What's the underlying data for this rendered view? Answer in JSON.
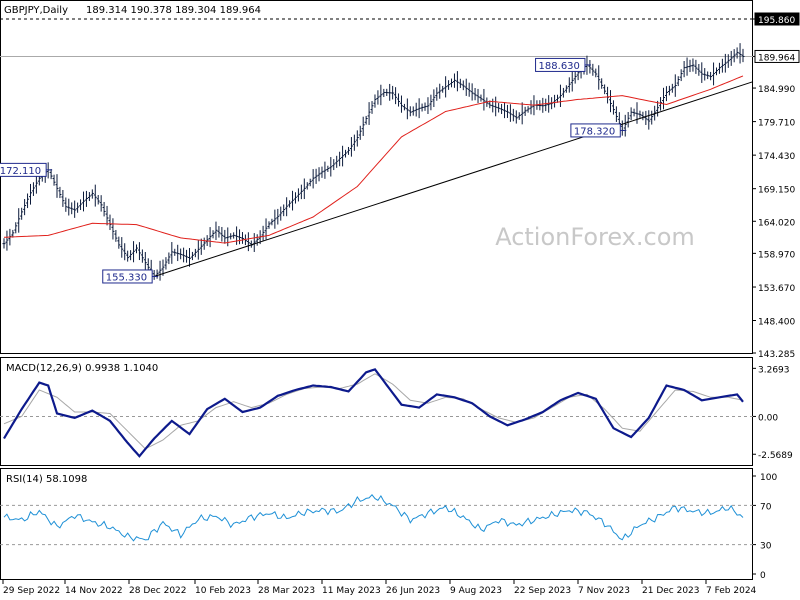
{
  "chart_data": {
    "type": "bar",
    "instrument_label": "GBPJPY,Daily",
    "ohlc_label": "189.314 190.378 189.304 189.964",
    "watermark": "ActionForex.com",
    "x_tick_labels": [
      "29 Sep 2022",
      "14 Nov 2022",
      "28 Dec 2022",
      "10 Feb 2023",
      "28 Mar 2023",
      "11 May 2023",
      "26 Jun 2023",
      "9 Aug 2023",
      "22 Sep 2023",
      "7 Nov 2023",
      "21 Dec 2023",
      "7 Feb 2024"
    ],
    "price_panel": {
      "ylim": [
        143.285,
        195.86
      ],
      "ticks": [
        "195.860",
        "189.964",
        "184.990",
        "179.710",
        "174.430",
        "169.150",
        "164.020",
        "158.970",
        "153.670",
        "148.400",
        "143.285"
      ],
      "resistance_level": 195.86,
      "last_price": 189.964,
      "annotations": [
        "172.110",
        "155.330",
        "188.630",
        "178.320"
      ],
      "trendline": {
        "from": {
          "date": "28 Dec 2022",
          "value": 155.33
        },
        "to": {
          "date": "7 Feb 2024",
          "value": 184.0
        }
      },
      "price_path": [
        [
          0,
          160.5
        ],
        [
          3,
          162.2
        ],
        [
          6,
          165.5
        ],
        [
          9,
          168.5
        ],
        [
          12,
          170.8
        ],
        [
          15,
          172.1
        ],
        [
          18,
          169.2
        ],
        [
          21,
          166.3
        ],
        [
          24,
          165.8
        ],
        [
          27,
          167.2
        ],
        [
          30,
          168.4
        ],
        [
          33,
          166.6
        ],
        [
          36,
          163.5
        ],
        [
          39,
          160.3
        ],
        [
          42,
          158.3
        ],
        [
          45,
          159.8
        ],
        [
          48,
          157.5
        ],
        [
          51,
          155.33
        ],
        [
          54,
          156.8
        ],
        [
          57,
          159.2
        ],
        [
          60,
          158.8
        ],
        [
          63,
          158.2
        ],
        [
          66,
          159.6
        ],
        [
          69,
          161.1
        ],
        [
          72,
          162.6
        ],
        [
          75,
          161.4
        ],
        [
          78,
          161.8
        ],
        [
          81,
          161.3
        ],
        [
          84,
          160.3
        ],
        [
          87,
          161.6
        ],
        [
          90,
          163.6
        ],
        [
          93,
          164.8
        ],
        [
          96,
          166.4
        ],
        [
          99,
          167.8
        ],
        [
          102,
          169.2
        ],
        [
          105,
          170.8
        ],
        [
          108,
          171.8
        ],
        [
          111,
          172.6
        ],
        [
          114,
          173.9
        ],
        [
          117,
          175.2
        ],
        [
          120,
          177.2
        ],
        [
          123,
          180.2
        ],
        [
          126,
          183.2
        ],
        [
          129,
          184.3
        ],
        [
          132,
          184.2
        ],
        [
          135,
          182.2
        ],
        [
          138,
          181.2
        ],
        [
          141,
          181.8
        ],
        [
          144,
          182.2
        ],
        [
          147,
          184.2
        ],
        [
          150,
          185.2
        ],
        [
          153,
          186.2
        ],
        [
          156,
          185.3
        ],
        [
          159,
          184.2
        ],
        [
          162,
          183.3
        ],
        [
          165,
          182.3
        ],
        [
          168,
          181.8
        ],
        [
          171,
          181.2
        ],
        [
          174,
          180.3
        ],
        [
          177,
          181.4
        ],
        [
          180,
          182.3
        ],
        [
          183,
          182.2
        ],
        [
          186,
          182.6
        ],
        [
          189,
          183.8
        ],
        [
          192,
          185.6
        ],
        [
          195,
          187.4
        ],
        [
          198,
          188.63
        ],
        [
          201,
          187.2
        ],
        [
          204,
          184.5
        ],
        [
          207,
          181.6
        ],
        [
          210,
          178.32
        ],
        [
          213,
          181.2
        ],
        [
          216,
          180.8
        ],
        [
          219,
          179.8
        ],
        [
          222,
          181.9
        ],
        [
          225,
          184.3
        ],
        [
          228,
          185.4
        ],
        [
          231,
          188.2
        ],
        [
          234,
          188.6
        ],
        [
          237,
          187.2
        ],
        [
          240,
          186.8
        ],
        [
          243,
          188.2
        ],
        [
          246,
          189.3
        ],
        [
          249,
          190.6
        ],
        [
          251,
          189.964
        ]
      ],
      "ma_path": [
        [
          0,
          161.5
        ],
        [
          15,
          161.8
        ],
        [
          30,
          163.7
        ],
        [
          45,
          163.5
        ],
        [
          60,
          161.4
        ],
        [
          75,
          160.6
        ],
        [
          90,
          161.8
        ],
        [
          105,
          164.7
        ],
        [
          120,
          169.5
        ],
        [
          135,
          177.3
        ],
        [
          150,
          181.3
        ],
        [
          165,
          182.9
        ],
        [
          180,
          182.3
        ],
        [
          195,
          183.2
        ],
        [
          210,
          183.8
        ],
        [
          225,
          182.4
        ],
        [
          240,
          184.8
        ],
        [
          251,
          186.9
        ]
      ]
    },
    "macd_panel": {
      "label": "MACD(12,26,9) 0.9938 1.1040",
      "ticks": [
        "3.2693",
        "0.00",
        "-2.5689"
      ],
      "ylim": [
        -3.3,
        3.7
      ],
      "macd": [
        [
          0,
          -1.5
        ],
        [
          6,
          0.5
        ],
        [
          12,
          2.3
        ],
        [
          15,
          2.1
        ],
        [
          18,
          0.2
        ],
        [
          24,
          -0.1
        ],
        [
          30,
          0.4
        ],
        [
          36,
          -0.3
        ],
        [
          42,
          -1.8
        ],
        [
          46,
          -2.7
        ],
        [
          51,
          -1.5
        ],
        [
          57,
          -0.3
        ],
        [
          63,
          -1.2
        ],
        [
          69,
          0.5
        ],
        [
          75,
          1.2
        ],
        [
          81,
          0.3
        ],
        [
          87,
          0.6
        ],
        [
          93,
          1.4
        ],
        [
          99,
          1.8
        ],
        [
          105,
          2.1
        ],
        [
          111,
          2.0
        ],
        [
          117,
          1.7
        ],
        [
          123,
          3.0
        ],
        [
          126,
          3.2
        ],
        [
          129,
          2.4
        ],
        [
          135,
          0.8
        ],
        [
          141,
          0.6
        ],
        [
          147,
          1.5
        ],
        [
          153,
          1.3
        ],
        [
          159,
          0.9
        ],
        [
          165,
          0.0
        ],
        [
          171,
          -0.6
        ],
        [
          177,
          -0.2
        ],
        [
          183,
          0.3
        ],
        [
          189,
          1.1
        ],
        [
          195,
          1.6
        ],
        [
          201,
          1.2
        ],
        [
          207,
          -0.8
        ],
        [
          213,
          -1.4
        ],
        [
          219,
          -0.1
        ],
        [
          225,
          2.1
        ],
        [
          231,
          1.8
        ],
        [
          237,
          1.1
        ],
        [
          243,
          1.3
        ],
        [
          249,
          1.5
        ],
        [
          251,
          0.9938
        ]
      ],
      "signal": [
        [
          0,
          -0.5
        ],
        [
          6,
          0.0
        ],
        [
          12,
          1.8
        ],
        [
          18,
          1.3
        ],
        [
          24,
          0.3
        ],
        [
          30,
          0.3
        ],
        [
          36,
          0.2
        ],
        [
          42,
          -1.0
        ],
        [
          48,
          -2.2
        ],
        [
          54,
          -1.6
        ],
        [
          60,
          -0.6
        ],
        [
          66,
          -0.3
        ],
        [
          72,
          0.6
        ],
        [
          78,
          1.0
        ],
        [
          84,
          0.6
        ],
        [
          90,
          0.9
        ],
        [
          96,
          1.5
        ],
        [
          102,
          1.9
        ],
        [
          108,
          2.0
        ],
        [
          114,
          1.9
        ],
        [
          120,
          2.2
        ],
        [
          126,
          2.9
        ],
        [
          132,
          2.2
        ],
        [
          138,
          1.1
        ],
        [
          144,
          0.9
        ],
        [
          150,
          1.3
        ],
        [
          156,
          1.2
        ],
        [
          162,
          0.5
        ],
        [
          168,
          -0.1
        ],
        [
          174,
          -0.4
        ],
        [
          180,
          -0.1
        ],
        [
          186,
          0.6
        ],
        [
          192,
          1.3
        ],
        [
          198,
          1.5
        ],
        [
          204,
          0.5
        ],
        [
          210,
          -0.8
        ],
        [
          216,
          -1.0
        ],
        [
          222,
          0.4
        ],
        [
          228,
          1.8
        ],
        [
          234,
          1.7
        ],
        [
          240,
          1.3
        ],
        [
          246,
          1.3
        ],
        [
          251,
          1.104
        ]
      ]
    },
    "rsi_panel": {
      "label": "RSI(14) 58.1098",
      "ticks": [
        "100",
        "70",
        "30",
        "0"
      ],
      "ylim": [
        0,
        100
      ],
      "levels": [
        70,
        30
      ],
      "rsi": [
        [
          0,
          58
        ],
        [
          6,
          55
        ],
        [
          12,
          64
        ],
        [
          18,
          48
        ],
        [
          24,
          60
        ],
        [
          30,
          53
        ],
        [
          36,
          48
        ],
        [
          42,
          38
        ],
        [
          48,
          35
        ],
        [
          54,
          52
        ],
        [
          60,
          40
        ],
        [
          66,
          56
        ],
        [
          72,
          59
        ],
        [
          78,
          50
        ],
        [
          84,
          58
        ],
        [
          90,
          62
        ],
        [
          96,
          57
        ],
        [
          102,
          63
        ],
        [
          108,
          65
        ],
        [
          114,
          64
        ],
        [
          120,
          75
        ],
        [
          126,
          79
        ],
        [
          132,
          70
        ],
        [
          138,
          55
        ],
        [
          144,
          62
        ],
        [
          150,
          68
        ],
        [
          156,
          58
        ],
        [
          162,
          45
        ],
        [
          168,
          55
        ],
        [
          174,
          50
        ],
        [
          180,
          55
        ],
        [
          186,
          60
        ],
        [
          192,
          65
        ],
        [
          198,
          63
        ],
        [
          204,
          52
        ],
        [
          210,
          35
        ],
        [
          216,
          50
        ],
        [
          222,
          58
        ],
        [
          228,
          68
        ],
        [
          234,
          64
        ],
        [
          240,
          62
        ],
        [
          246,
          68
        ],
        [
          251,
          58.11
        ]
      ]
    }
  }
}
